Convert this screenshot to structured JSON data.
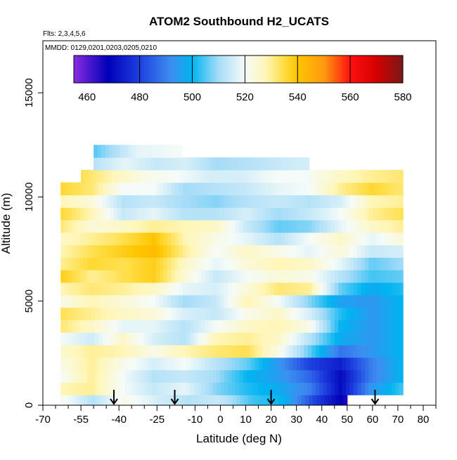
{
  "chart_data": {
    "type": "heatmap",
    "title": "ATOM2 Southbound H2_UCATS",
    "annotations": [
      "Flts: 2,3,4,5,6",
      "MMDD: 0129,0201,0203,0205,0210"
    ],
    "xlabel": "Latitude (deg N)",
    "ylabel": "Altitude (m)",
    "xlim": [
      -70,
      85
    ],
    "ylim": [
      0,
      17500
    ],
    "x_ticks": [
      -70,
      -55,
      -40,
      -25,
      -10,
      0,
      10,
      20,
      30,
      40,
      50,
      60,
      70,
      80
    ],
    "x_tick_labels": [
      "-70",
      "-55",
      "-40",
      "-25",
      "-10",
      "0",
      "10",
      "20",
      "30",
      "40",
      "50",
      "60",
      "70",
      "80"
    ],
    "x_minor_ticks": [
      -65,
      -60,
      -50,
      -45,
      -35,
      -30,
      -20,
      -15,
      -5,
      5,
      15,
      25,
      35,
      45,
      55,
      65,
      75,
      85
    ],
    "y_ticks": [
      0,
      5000,
      10000,
      15000
    ],
    "y_tick_labels": [
      "0",
      "5000",
      "10000",
      "15000"
    ],
    "colorbar": {
      "range": [
        455,
        580
      ],
      "ticks": [
        460,
        480,
        500,
        520,
        540,
        560,
        580
      ],
      "tick_labels": [
        "460",
        "480",
        "500",
        "520",
        "540",
        "560",
        "580"
      ],
      "divider_values": [
        480,
        500,
        520,
        540,
        560
      ],
      "stops": [
        {
          "value": 455,
          "color": "#8a2be2"
        },
        {
          "value": 468,
          "color": "#0000b8"
        },
        {
          "value": 480,
          "color": "#1e40e0"
        },
        {
          "value": 492,
          "color": "#3d8ef0"
        },
        {
          "value": 500,
          "color": "#00b4f0"
        },
        {
          "value": 510,
          "color": "#a6dcf8"
        },
        {
          "value": 520,
          "color": "#f5fbf8"
        },
        {
          "value": 528,
          "color": "#fff6b8"
        },
        {
          "value": 535,
          "color": "#ffdc40"
        },
        {
          "value": 540,
          "color": "#ffc400"
        },
        {
          "value": 550,
          "color": "#ff9a10"
        },
        {
          "value": 560,
          "color": "#ff1010"
        },
        {
          "value": 570,
          "color": "#d40000"
        },
        {
          "value": 580,
          "color": "#7a1818"
        }
      ]
    },
    "flight_markers_lat": [
      -42,
      -18,
      20,
      61
    ],
    "bands": [
      {
        "alt": 200,
        "lat": [
          -63,
          50
        ],
        "v": [
          522,
          512,
          522,
          516,
          512,
          514,
          504,
          500,
          480,
          465
        ]
      },
      {
        "alt": 800,
        "lat": [
          -63,
          72
        ],
        "v": [
          528,
          530,
          520,
          514,
          518,
          508,
          502,
          498,
          490,
          470,
          494,
          504
        ]
      },
      {
        "alt": 1400,
        "lat": [
          -63,
          72
        ],
        "v": [
          520,
          530,
          520,
          512,
          514,
          510,
          500,
          495,
          486,
          470,
          490,
          500
        ]
      },
      {
        "alt": 2000,
        "lat": [
          -63,
          72
        ],
        "v": [
          522,
          530,
          522,
          516,
          520,
          512,
          506,
          494,
          480,
          474,
          490,
          500
        ]
      },
      {
        "alt": 2600,
        "lat": [
          -63,
          72
        ],
        "v": [
          525,
          530,
          528,
          522,
          528,
          532,
          534,
          522,
          506,
          488,
          494,
          500
        ]
      },
      {
        "alt": 3200,
        "lat": [
          -63,
          72
        ],
        "v": [
          520,
          515,
          526,
          516,
          512,
          528,
          530,
          526,
          512,
          498,
          494,
          500
        ]
      },
      {
        "alt": 3800,
        "lat": [
          -63,
          72
        ],
        "v": [
          532,
          526,
          518,
          518,
          512,
          520,
          526,
          528,
          522,
          500,
          494,
          500
        ]
      },
      {
        "alt": 4400,
        "lat": [
          -63,
          72
        ],
        "v": [
          534,
          530,
          526,
          524,
          516,
          514,
          522,
          526,
          516,
          502,
          494,
          500
        ]
      },
      {
        "alt": 5000,
        "lat": [
          -63,
          72
        ],
        "v": [
          522,
          528,
          524,
          520,
          510,
          514,
          528,
          520,
          508,
          496,
          494,
          500
        ]
      },
      {
        "alt": 5600,
        "lat": [
          -63,
          72
        ],
        "v": [
          528,
          532,
          530,
          526,
          518,
          516,
          524,
          532,
          530,
          506,
          498,
          502
        ]
      },
      {
        "alt": 6200,
        "lat": [
          -63,
          72
        ],
        "v": [
          538,
          530,
          534,
          538,
          524,
          514,
          520,
          524,
          522,
          512,
          504,
          506
        ]
      },
      {
        "alt": 6800,
        "lat": [
          -63,
          72
        ],
        "v": [
          530,
          536,
          534,
          538,
          526,
          518,
          524,
          528,
          526,
          518,
          506,
          510
        ]
      },
      {
        "alt": 7400,
        "lat": [
          -63,
          72
        ],
        "v": [
          528,
          534,
          538,
          542,
          530,
          520,
          526,
          522,
          518,
          524,
          514,
          516
        ]
      },
      {
        "alt": 8000,
        "lat": [
          -63,
          72
        ],
        "v": [
          526,
          530,
          534,
          540,
          528,
          522,
          518,
          512,
          520,
          526,
          518,
          524
        ]
      },
      {
        "alt": 8600,
        "lat": [
          -63,
          72
        ],
        "v": [
          532,
          524,
          526,
          530,
          528,
          526,
          514,
          506,
          508,
          518,
          526,
          530
        ]
      },
      {
        "alt": 9200,
        "lat": [
          -63,
          72
        ],
        "v": [
          536,
          528,
          514,
          518,
          512,
          512,
          516,
          510,
          514,
          520,
          530,
          534
        ]
      },
      {
        "alt": 9800,
        "lat": [
          -63,
          72
        ],
        "v": [
          528,
          524,
          512,
          514,
          510,
          508,
          512,
          514,
          512,
          516,
          528,
          530
        ]
      },
      {
        "alt": 10400,
        "lat": [
          -63,
          72
        ],
        "v": [
          536,
          532,
          520,
          520,
          510,
          512,
          514,
          518,
          520,
          530,
          536,
          532
        ]
      },
      {
        "alt": 11000,
        "lat": [
          -55,
          72
        ],
        "v": [
          534,
          528,
          522,
          520,
          516,
          516,
          520,
          520,
          526,
          530,
          532
        ]
      },
      {
        "alt": 11600,
        "lat": [
          -50,
          35
        ],
        "v": [
          512,
          518,
          514,
          516,
          510,
          512,
          514,
          516
        ]
      },
      {
        "alt": 12200,
        "lat": [
          -50,
          -15
        ],
        "v": [
          505,
          518,
          520
        ]
      }
    ]
  }
}
